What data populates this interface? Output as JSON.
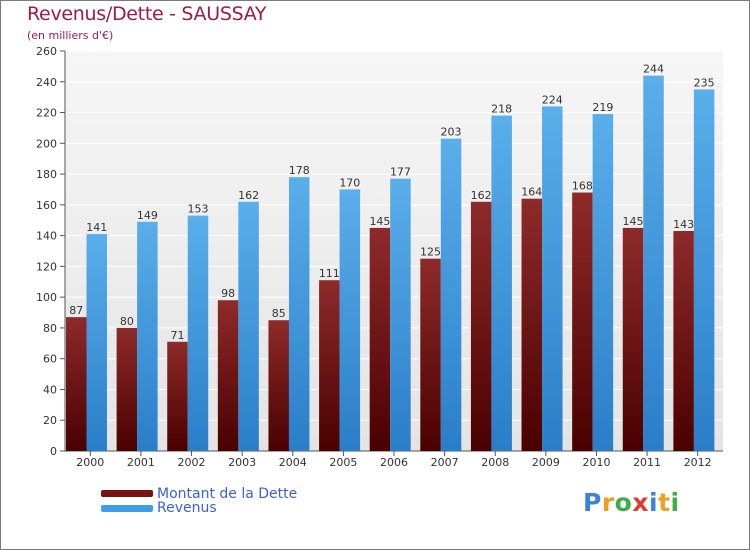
{
  "chart_data": {
    "type": "bar",
    "title": "Revenus/Dette - SAUSSAY",
    "subtitle": "(en milliers d'€)",
    "categories": [
      "2000",
      "2001",
      "2002",
      "2003",
      "2004",
      "2005",
      "2006",
      "2007",
      "2008",
      "2009",
      "2010",
      "2011",
      "2012"
    ],
    "series": [
      {
        "name": "Montant de la Dette",
        "color": "#7a1212",
        "values": [
          87,
          80,
          71,
          98,
          85,
          111,
          145,
          125,
          162,
          164,
          168,
          145,
          143
        ]
      },
      {
        "name": "Revenus",
        "color": "#3d9ee8",
        "values": [
          141,
          149,
          153,
          162,
          178,
          170,
          177,
          203,
          218,
          224,
          219,
          244,
          235
        ]
      }
    ],
    "ylim": [
      0,
      260
    ],
    "yticks": [
      0,
      20,
      40,
      60,
      80,
      100,
      120,
      140,
      160,
      180,
      200,
      220,
      240,
      260
    ],
    "grid": true,
    "legend_position": "bottom-left"
  },
  "brand": {
    "letters": [
      "P",
      "r",
      "o",
      "x",
      "i",
      "t",
      "i"
    ],
    "colors": [
      "#3b82d8",
      "#f0a020",
      "#3fae48",
      "#e23b2e",
      "#3b82d8",
      "#f0a020",
      "#3fae48"
    ]
  }
}
